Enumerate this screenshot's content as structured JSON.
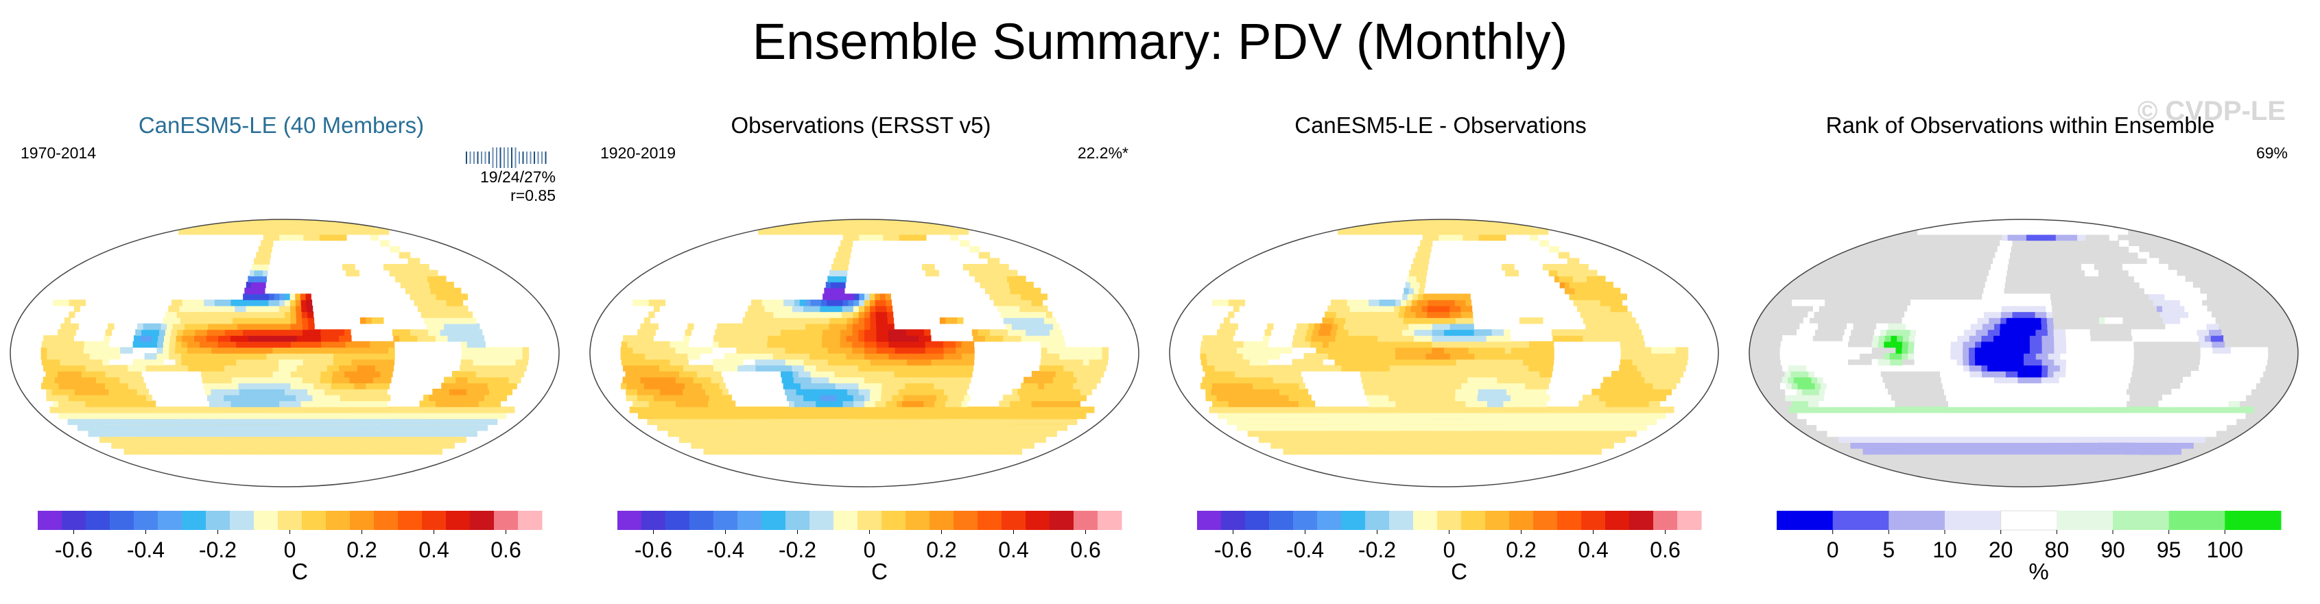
{
  "title": "Ensemble Summary: PDV (Monthly)",
  "watermark": "© CVDP-LE",
  "colors": {
    "diverging": [
      "#7b2fe0",
      "#4a3ad8",
      "#3a4fe0",
      "#3d6be8",
      "#4a86ef",
      "#5aa2f5",
      "#37b8f2",
      "#8ccdf0",
      "#bfe2f2",
      "#fffcc0",
      "#ffe680",
      "#ffd24a",
      "#ffb830",
      "#ff9c1e",
      "#ff7a12",
      "#ff5a0a",
      "#f53a0a",
      "#e01b0b",
      "#c8141a",
      "#f27a86",
      "#ffb6bd"
    ],
    "rank": [
      "#0000ee",
      "#5c5cf2",
      "#b0b0f0",
      "#e4e4f8",
      "#ffffff",
      "#e4f8e4",
      "#b8f5b8",
      "#7cf27c",
      "#12e512"
    ],
    "land": "#ffffff",
    "rank_land": "#dcdcdc"
  },
  "chart_data": [
    {
      "type": "heatmap",
      "title": "CanESM5-LE (40 Members)",
      "period": "1970-2014",
      "stats": [
        "19/24/27%",
        "r=0.85"
      ],
      "colorbar": {
        "ticks": [
          "-0.6",
          "-0.4",
          "-0.2",
          "0",
          "0.2",
          "0.4",
          "0.6"
        ],
        "tick_values": [
          -0.6,
          -0.4,
          -0.2,
          0,
          0.2,
          0.4,
          0.6
        ],
        "range": [
          -0.7,
          0.7
        ],
        "label": "C"
      },
      "pattern": "model",
      "blobs": [
        {
          "lon": -170,
          "lat": 43,
          "sx": 32,
          "sy": 9,
          "v": -0.75
        },
        {
          "lon": -155,
          "lat": 10,
          "sx": 55,
          "sy": 8,
          "v": 0.55
        },
        {
          "lon": -132,
          "lat": 35,
          "sx": 10,
          "sy": 16,
          "v": 0.55
        },
        {
          "lon": -110,
          "lat": 22,
          "sx": 18,
          "sy": 9,
          "v": 0.35
        },
        {
          "lon": 120,
          "lat": 10,
          "sx": 15,
          "sy": 12,
          "v": -0.35
        },
        {
          "lon": -160,
          "lat": -30,
          "sx": 40,
          "sy": 10,
          "v": -0.25
        },
        {
          "lon": -100,
          "lat": -15,
          "sx": 25,
          "sy": 10,
          "v": 0.2
        },
        {
          "lon": -30,
          "lat": -25,
          "sx": 30,
          "sy": 12,
          "v": 0.15
        },
        {
          "lon": -30,
          "lat": 15,
          "sx": 25,
          "sy": 10,
          "v": -0.15
        },
        {
          "lon": 70,
          "lat": -20,
          "sx": 25,
          "sy": 12,
          "v": 0.15
        },
        {
          "lon": 170,
          "lat": -48,
          "sx": 40,
          "sy": 6,
          "v": 0.2
        },
        {
          "lon": 40,
          "lat": -50,
          "sx": 50,
          "sy": 6,
          "v": -0.15
        }
      ]
    },
    {
      "type": "heatmap",
      "title": "Observations (ERSST v5)",
      "period": "1920-2019",
      "stats": [
        "22.2%*"
      ],
      "colorbar": {
        "ticks": [
          "-0.6",
          "-0.4",
          "-0.2",
          "0",
          "0.2",
          "0.4",
          "0.6"
        ],
        "tick_values": [
          -0.6,
          -0.4,
          -0.2,
          0,
          0.2,
          0.4,
          0.6
        ],
        "range": [
          -0.7,
          0.7
        ],
        "label": "C"
      },
      "pattern": "obs",
      "blobs": [
        {
          "lon": -168,
          "lat": 40,
          "sx": 28,
          "sy": 10,
          "v": -0.8
        },
        {
          "lon": -125,
          "lat": 10,
          "sx": 40,
          "sy": 16,
          "v": 0.55
        },
        {
          "lon": -140,
          "lat": 35,
          "sx": 12,
          "sy": 14,
          "v": 0.45
        },
        {
          "lon": 150,
          "lat": -15,
          "sx": 25,
          "sy": 12,
          "v": -0.3
        },
        {
          "lon": -170,
          "lat": -30,
          "sx": 30,
          "sy": 10,
          "v": -0.3
        },
        {
          "lon": -110,
          "lat": -35,
          "sx": 20,
          "sy": 10,
          "v": 0.2
        },
        {
          "lon": -40,
          "lat": 20,
          "sx": 25,
          "sy": 10,
          "v": -0.15
        },
        {
          "lon": 0,
          "lat": -40,
          "sx": 30,
          "sy": 8,
          "v": 0.2
        },
        {
          "lon": 70,
          "lat": -20,
          "sx": 30,
          "sy": 15,
          "v": 0.2
        },
        {
          "lon": -30,
          "lat": -15,
          "sx": 20,
          "sy": 10,
          "v": 0.15
        }
      ]
    },
    {
      "type": "heatmap",
      "title": "CanESM5-LE - Observations",
      "period": "",
      "stats": [],
      "colorbar": {
        "ticks": [
          "-0.6",
          "-0.4",
          "-0.2",
          "0",
          "0.2",
          "0.4",
          "0.6"
        ],
        "tick_values": [
          -0.6,
          -0.4,
          -0.2,
          0,
          0.2,
          0.4,
          0.6
        ],
        "range": [
          -0.7,
          0.7
        ],
        "label": "C"
      },
      "pattern": "diff",
      "blobs": [
        {
          "lon": -155,
          "lat": 30,
          "sx": 25,
          "sy": 8,
          "v": 0.3
        },
        {
          "lon": 170,
          "lat": 40,
          "sx": 15,
          "sy": 8,
          "v": -0.3
        },
        {
          "lon": -140,
          "lat": 15,
          "sx": 30,
          "sy": 6,
          "v": -0.25
        },
        {
          "lon": -150,
          "lat": 0,
          "sx": 30,
          "sy": 6,
          "v": 0.25
        },
        {
          "lon": 130,
          "lat": 15,
          "sx": 10,
          "sy": 10,
          "v": 0.2
        },
        {
          "lon": -120,
          "lat": -30,
          "sx": 25,
          "sy": 10,
          "v": -0.15
        },
        {
          "lon": 60,
          "lat": -30,
          "sx": 40,
          "sy": 15,
          "v": 0.15
        },
        {
          "lon": -40,
          "lat": -10,
          "sx": 30,
          "sy": 15,
          "v": 0.1
        },
        {
          "lon": -60,
          "lat": 45,
          "sx": 15,
          "sy": 8,
          "v": 0.25
        },
        {
          "lon": 0,
          "lat": -45,
          "sx": 40,
          "sy": 8,
          "v": -0.15
        }
      ]
    },
    {
      "type": "heatmap",
      "title": "Rank of Observations within Ensemble",
      "period": "",
      "stats": [
        "69%"
      ],
      "colorbar": {
        "ticks": [
          "0",
          "5",
          "10",
          "20",
          "80",
          "90",
          "95",
          "100"
        ],
        "tick_values": [
          0,
          5,
          10,
          20,
          80,
          90,
          95,
          100
        ],
        "bins": [
          0,
          5,
          10,
          20,
          80,
          90,
          95,
          100
        ],
        "label": "%"
      },
      "pattern": "rank",
      "blobs": [
        {
          "lon": -150,
          "lat": 20,
          "sx": 20,
          "sy": 8,
          "v": -3
        },
        {
          "lon": -160,
          "lat": 5,
          "sx": 25,
          "sy": 10,
          "v": -3
        },
        {
          "lon": -145,
          "lat": -12,
          "sx": 15,
          "sy": 6,
          "v": -3
        },
        {
          "lon": -170,
          "lat": -5,
          "sx": 15,
          "sy": 8,
          "v": -3
        },
        {
          "lon": -100,
          "lat": 35,
          "sx": 12,
          "sy": 10,
          "v": 3
        },
        {
          "lon": 125,
          "lat": 5,
          "sx": 10,
          "sy": 10,
          "v": 3
        },
        {
          "lon": -60,
          "lat": -60,
          "sx": 50,
          "sy": 5,
          "v": -2
        },
        {
          "lon": 0,
          "lat": -65,
          "sx": 30,
          "sy": 5,
          "v": -2
        },
        {
          "lon": 60,
          "lat": -62,
          "sx": 30,
          "sy": 4,
          "v": -2
        },
        {
          "lon": -60,
          "lat": 30,
          "sx": 25,
          "sy": 10,
          "v": -1
        },
        {
          "lon": -120,
          "lat": 80,
          "sx": 60,
          "sy": 5,
          "v": -2
        },
        {
          "lon": 60,
          "lat": -20,
          "sx": 10,
          "sy": 8,
          "v": 2
        },
        {
          "lon": -20,
          "lat": 10,
          "sx": 10,
          "sy": 6,
          "v": -2
        },
        {
          "lon": 30,
          "lat": -35,
          "sx": 20,
          "sy": 5,
          "v": 2
        }
      ]
    }
  ]
}
